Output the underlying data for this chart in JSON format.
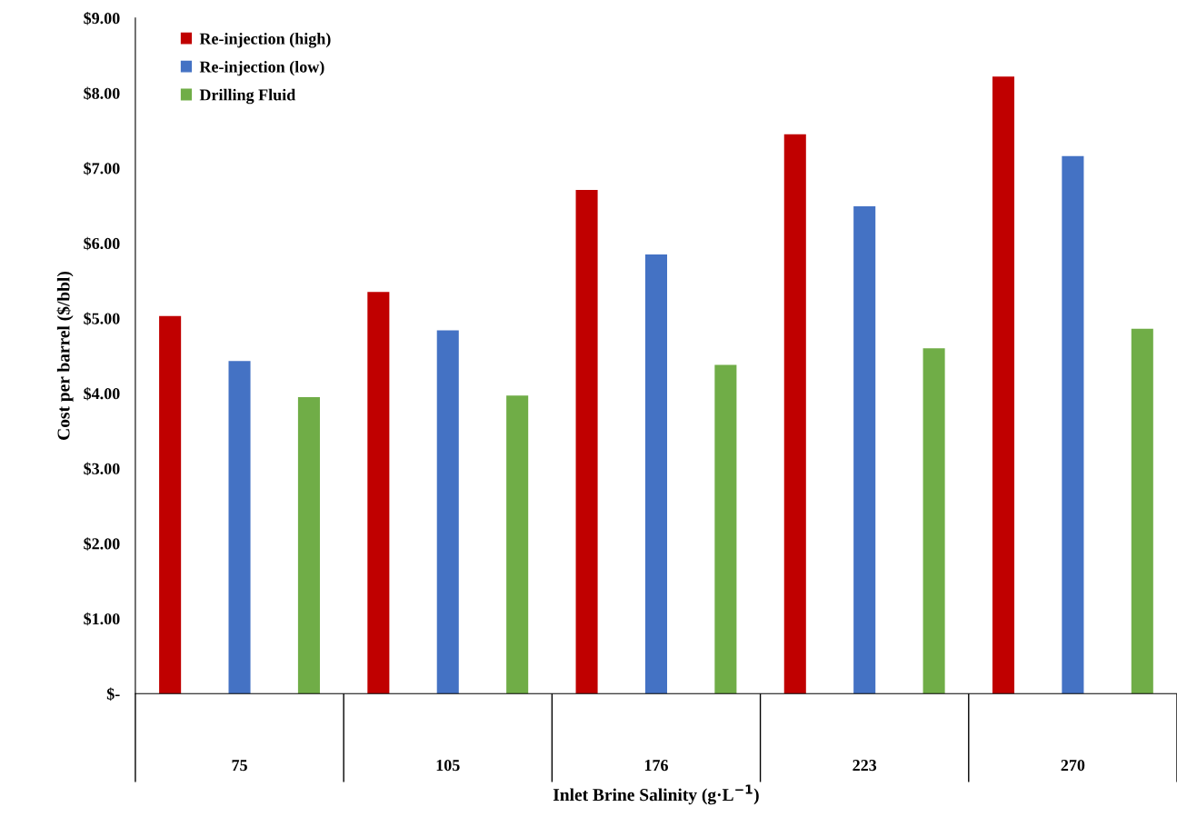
{
  "chart_data": {
    "type": "bar",
    "xlabel": "Inlet Brine Salinity (g·L$^{−1}$)",
    "ylabel": "Cost per barrel ($/bbl)",
    "categories": [
      "75",
      "105",
      "176",
      "223",
      "270"
    ],
    "series": [
      {
        "name": "Re-injection (high)",
        "color": "#c00000",
        "values": [
          5.03,
          5.35,
          6.71,
          7.45,
          8.22
        ]
      },
      {
        "name": "Re-injection (low)",
        "color": "#4472c4",
        "values": [
          4.43,
          4.84,
          5.85,
          6.49,
          7.16
        ]
      },
      {
        "name": "Drilling Fluid",
        "color": "#70ad47",
        "values": [
          3.95,
          3.97,
          4.38,
          4.6,
          4.86
        ]
      }
    ],
    "ylim": [
      0,
      9
    ],
    "yticks": [
      {
        "value": 0,
        "label": "$-"
      },
      {
        "value": 1,
        "label": "$1.00"
      },
      {
        "value": 2,
        "label": "$2.00"
      },
      {
        "value": 3,
        "label": "$3.00"
      },
      {
        "value": 4,
        "label": "$4.00"
      },
      {
        "value": 5,
        "label": "$5.00"
      },
      {
        "value": 6,
        "label": "$6.00"
      },
      {
        "value": 7,
        "label": "$7.00"
      },
      {
        "value": 8,
        "label": "$8.00"
      },
      {
        "value": 9,
        "label": "$9.00"
      }
    ],
    "grid": false,
    "legend": "top left"
  }
}
